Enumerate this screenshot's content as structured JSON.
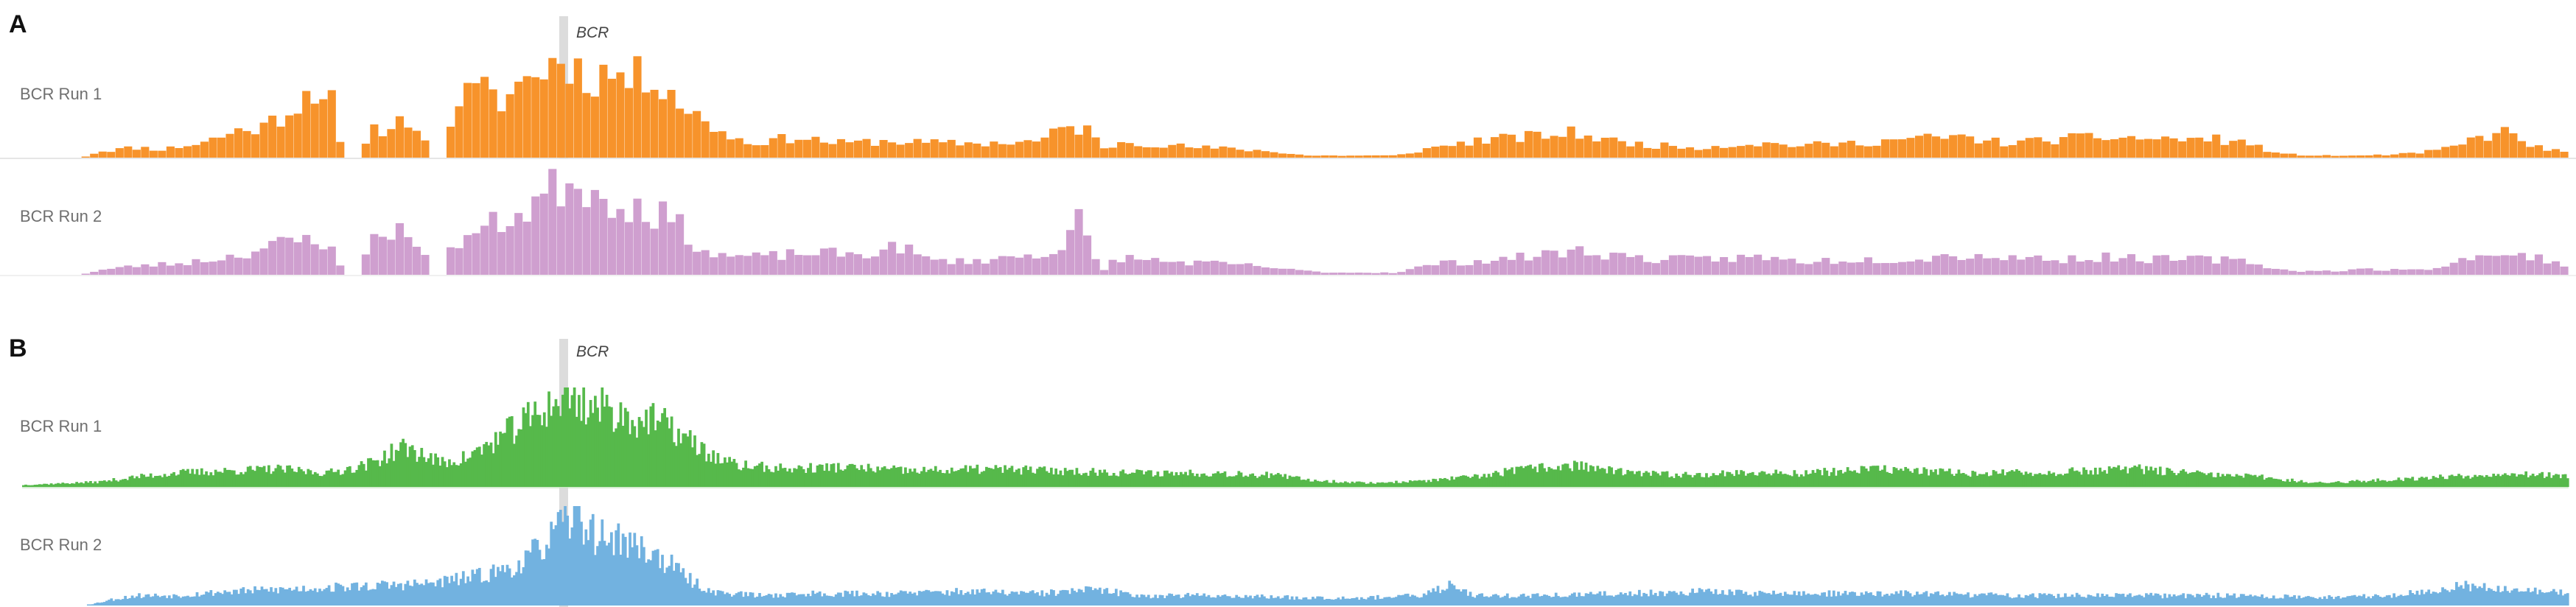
{
  "chart_data": [
    {
      "type": "bar",
      "panel": "A",
      "gene": "BCR",
      "gene_position": 0.218,
      "bins": 300,
      "series": [
        {
          "name": "BCR Run 1",
          "color": "#f7932b",
          "profile": [
            [
              0.0,
              0
            ],
            [
              0.024,
              0
            ],
            [
              0.03,
              0.06
            ],
            [
              0.045,
              0.1
            ],
            [
              0.055,
              0.08
            ],
            [
              0.07,
              0.14
            ],
            [
              0.085,
              0.26
            ],
            [
              0.095,
              0.3
            ],
            [
              0.105,
              0.46
            ],
            [
              0.115,
              0.7
            ],
            [
              0.122,
              0.52
            ],
            [
              0.126,
              0
            ],
            [
              0.134,
              0
            ],
            [
              0.136,
              0.24
            ],
            [
              0.145,
              0.3
            ],
            [
              0.152,
              0.4
            ],
            [
              0.157,
              0.25
            ],
            [
              0.16,
              0
            ],
            [
              0.165,
              0
            ],
            [
              0.17,
              0.55
            ],
            [
              0.18,
              0.65
            ],
            [
              0.188,
              0.55
            ],
            [
              0.195,
              0.7
            ],
            [
              0.205,
              0.88
            ],
            [
              0.215,
              0.96
            ],
            [
              0.22,
              0.78
            ],
            [
              0.23,
              0.82
            ],
            [
              0.24,
              0.76
            ],
            [
              0.25,
              0.82
            ],
            [
              0.258,
              0.55
            ],
            [
              0.265,
              0.4
            ],
            [
              0.275,
              0.25
            ],
            [
              0.285,
              0.14
            ],
            [
              0.305,
              0.2
            ],
            [
              0.32,
              0.14
            ],
            [
              0.34,
              0.16
            ],
            [
              0.36,
              0.14
            ],
            [
              0.38,
              0.14
            ],
            [
              0.4,
              0.16
            ],
            [
              0.41,
              0.3
            ],
            [
              0.418,
              0.28
            ],
            [
              0.425,
              0.08
            ],
            [
              0.432,
              0.16
            ],
            [
              0.46,
              0.1
            ],
            [
              0.48,
              0.08
            ],
            [
              0.495,
              0.05
            ],
            [
              0.505,
              0.02
            ],
            [
              0.525,
              0.02
            ],
            [
              0.54,
              0.02
            ],
            [
              0.555,
              0.1
            ],
            [
              0.57,
              0.16
            ],
            [
              0.59,
              0.2
            ],
            [
              0.61,
              0.24
            ],
            [
              0.625,
              0.16
            ],
            [
              0.64,
              0.12
            ],
            [
              0.66,
              0.1
            ],
            [
              0.68,
              0.14
            ],
            [
              0.7,
              0.12
            ],
            [
              0.72,
              0.14
            ],
            [
              0.74,
              0.18
            ],
            [
              0.76,
              0.2
            ],
            [
              0.78,
              0.14
            ],
            [
              0.8,
              0.18
            ],
            [
              0.82,
              0.2
            ],
            [
              0.84,
              0.18
            ],
            [
              0.86,
              0.18
            ],
            [
              0.875,
              0.14
            ],
            [
              0.885,
              0.04
            ],
            [
              0.9,
              0.02
            ],
            [
              0.92,
              0.02
            ],
            [
              0.94,
              0.04
            ],
            [
              0.955,
              0.1
            ],
            [
              0.965,
              0.2
            ],
            [
              0.975,
              0.25
            ],
            [
              0.985,
              0.12
            ],
            [
              1.0,
              0.04
            ]
          ]
        },
        {
          "name": "BCR Run 2",
          "color": "#cf9fcf",
          "profile": [
            [
              0.0,
              0
            ],
            [
              0.024,
              0
            ],
            [
              0.03,
              0.04
            ],
            [
              0.045,
              0.08
            ],
            [
              0.06,
              0.1
            ],
            [
              0.075,
              0.14
            ],
            [
              0.085,
              0.18
            ],
            [
              0.095,
              0.24
            ],
            [
              0.105,
              0.3
            ],
            [
              0.115,
              0.32
            ],
            [
              0.122,
              0.28
            ],
            [
              0.126,
              0
            ],
            [
              0.134,
              0
            ],
            [
              0.136,
              0.35
            ],
            [
              0.145,
              0.4
            ],
            [
              0.152,
              0.38
            ],
            [
              0.157,
              0.3
            ],
            [
              0.16,
              0
            ],
            [
              0.165,
              0
            ],
            [
              0.17,
              0.3
            ],
            [
              0.18,
              0.4
            ],
            [
              0.19,
              0.5
            ],
            [
              0.2,
              0.62
            ],
            [
              0.21,
              0.8
            ],
            [
              0.218,
              0.9
            ],
            [
              0.225,
              0.72
            ],
            [
              0.235,
              0.66
            ],
            [
              0.245,
              0.6
            ],
            [
              0.255,
              0.5
            ],
            [
              0.262,
              0.35
            ],
            [
              0.27,
              0.18
            ],
            [
              0.29,
              0.16
            ],
            [
              0.31,
              0.2
            ],
            [
              0.33,
              0.18
            ],
            [
              0.345,
              0.26
            ],
            [
              0.355,
              0.14
            ],
            [
              0.37,
              0.12
            ],
            [
              0.39,
              0.16
            ],
            [
              0.405,
              0.2
            ],
            [
              0.415,
              0.5
            ],
            [
              0.42,
              0.18
            ],
            [
              0.425,
              0.04
            ],
            [
              0.43,
              0.16
            ],
            [
              0.45,
              0.12
            ],
            [
              0.47,
              0.1
            ],
            [
              0.485,
              0.08
            ],
            [
              0.5,
              0.04
            ],
            [
              0.515,
              0.02
            ],
            [
              0.525,
              0.02
            ],
            [
              0.54,
              0.02
            ],
            [
              0.555,
              0.1
            ],
            [
              0.57,
              0.12
            ],
            [
              0.59,
              0.16
            ],
            [
              0.61,
              0.22
            ],
            [
              0.625,
              0.18
            ],
            [
              0.64,
              0.14
            ],
            [
              0.66,
              0.14
            ],
            [
              0.68,
              0.16
            ],
            [
              0.7,
              0.12
            ],
            [
              0.72,
              0.14
            ],
            [
              0.74,
              0.14
            ],
            [
              0.76,
              0.18
            ],
            [
              0.78,
              0.16
            ],
            [
              0.8,
              0.14
            ],
            [
              0.82,
              0.16
            ],
            [
              0.84,
              0.14
            ],
            [
              0.86,
              0.14
            ],
            [
              0.875,
              0.12
            ],
            [
              0.885,
              0.05
            ],
            [
              0.9,
              0.03
            ],
            [
              0.92,
              0.05
            ],
            [
              0.94,
              0.04
            ],
            [
              0.955,
              0.1
            ],
            [
              0.965,
              0.2
            ],
            [
              0.975,
              0.15
            ],
            [
              0.985,
              0.18
            ],
            [
              1.0,
              0.08
            ]
          ]
        }
      ]
    },
    {
      "type": "area",
      "panel": "B",
      "gene": "BCR",
      "gene_position": 0.218,
      "bins": 1100,
      "series": [
        {
          "name": "BCR Run 1",
          "color": "#56b94b",
          "profile": [
            [
              0.0,
              0.02
            ],
            [
              0.01,
              0.03
            ],
            [
              0.03,
              0.05
            ],
            [
              0.045,
              0.1
            ],
            [
              0.06,
              0.14
            ],
            [
              0.08,
              0.16
            ],
            [
              0.1,
              0.18
            ],
            [
              0.12,
              0.14
            ],
            [
              0.135,
              0.22
            ],
            [
              0.15,
              0.4
            ],
            [
              0.165,
              0.24
            ],
            [
              0.175,
              0.3
            ],
            [
              0.185,
              0.45
            ],
            [
              0.195,
              0.62
            ],
            [
              0.205,
              0.78
            ],
            [
              0.215,
              0.92
            ],
            [
              0.222,
              0.82
            ],
            [
              0.23,
              0.78
            ],
            [
              0.24,
              0.68
            ],
            [
              0.25,
              0.66
            ],
            [
              0.26,
              0.5
            ],
            [
              0.27,
              0.32
            ],
            [
              0.28,
              0.22
            ],
            [
              0.3,
              0.18
            ],
            [
              0.32,
              0.2
            ],
            [
              0.35,
              0.16
            ],
            [
              0.38,
              0.18
            ],
            [
              0.41,
              0.16
            ],
            [
              0.44,
              0.14
            ],
            [
              0.47,
              0.14
            ],
            [
              0.49,
              0.12
            ],
            [
              0.51,
              0.06
            ],
            [
              0.53,
              0.04
            ],
            [
              0.55,
              0.06
            ],
            [
              0.57,
              0.1
            ],
            [
              0.59,
              0.18
            ],
            [
              0.61,
              0.22
            ],
            [
              0.63,
              0.14
            ],
            [
              0.65,
              0.12
            ],
            [
              0.67,
              0.14
            ],
            [
              0.7,
              0.14
            ],
            [
              0.73,
              0.18
            ],
            [
              0.76,
              0.14
            ],
            [
              0.79,
              0.14
            ],
            [
              0.81,
              0.16
            ],
            [
              0.83,
              0.18
            ],
            [
              0.86,
              0.12
            ],
            [
              0.88,
              0.1
            ],
            [
              0.9,
              0.04
            ],
            [
              0.92,
              0.06
            ],
            [
              0.95,
              0.1
            ],
            [
              0.98,
              0.14
            ],
            [
              1.0,
              0.1
            ]
          ]
        },
        {
          "name": "BCR Run 2",
          "color": "#72b2e0",
          "profile": [
            [
              0.0,
              0
            ],
            [
              0.025,
              0
            ],
            [
              0.035,
              0.06
            ],
            [
              0.045,
              0.1
            ],
            [
              0.06,
              0.1
            ],
            [
              0.08,
              0.14
            ],
            [
              0.1,
              0.16
            ],
            [
              0.12,
              0.18
            ],
            [
              0.14,
              0.2
            ],
            [
              0.16,
              0.22
            ],
            [
              0.18,
              0.3
            ],
            [
              0.195,
              0.4
            ],
            [
              0.205,
              0.62
            ],
            [
              0.212,
              0.8
            ],
            [
              0.218,
              0.92
            ],
            [
              0.225,
              0.7
            ],
            [
              0.235,
              0.66
            ],
            [
              0.245,
              0.56
            ],
            [
              0.255,
              0.4
            ],
            [
              0.262,
              0.26
            ],
            [
              0.27,
              0.14
            ],
            [
              0.29,
              0.1
            ],
            [
              0.31,
              0.12
            ],
            [
              0.34,
              0.12
            ],
            [
              0.37,
              0.14
            ],
            [
              0.4,
              0.12
            ],
            [
              0.42,
              0.16
            ],
            [
              0.44,
              0.1
            ],
            [
              0.47,
              0.1
            ],
            [
              0.5,
              0.08
            ],
            [
              0.53,
              0.08
            ],
            [
              0.55,
              0.1
            ],
            [
              0.562,
              0.22
            ],
            [
              0.57,
              0.1
            ],
            [
              0.6,
              0.1
            ],
            [
              0.63,
              0.12
            ],
            [
              0.66,
              0.14
            ],
            [
              0.69,
              0.12
            ],
            [
              0.72,
              0.12
            ],
            [
              0.75,
              0.12
            ],
            [
              0.78,
              0.1
            ],
            [
              0.81,
              0.1
            ],
            [
              0.84,
              0.1
            ],
            [
              0.87,
              0.1
            ],
            [
              0.9,
              0.08
            ],
            [
              0.93,
              0.1
            ],
            [
              0.96,
              0.2
            ],
            [
              0.98,
              0.16
            ],
            [
              1.0,
              0.12
            ]
          ]
        }
      ]
    }
  ],
  "panels": {
    "a": {
      "letter": "A",
      "gene_label": "BCR",
      "track1": "BCR Run 1",
      "track2": "BCR Run 2"
    },
    "b": {
      "letter": "B",
      "gene_label": "BCR",
      "track1": "BCR Run 1",
      "track2": "BCR Run 2"
    }
  },
  "colors": {
    "gene_marker": "#dcdcdc",
    "divider": "#dedede",
    "label": "#6f6f6f"
  }
}
